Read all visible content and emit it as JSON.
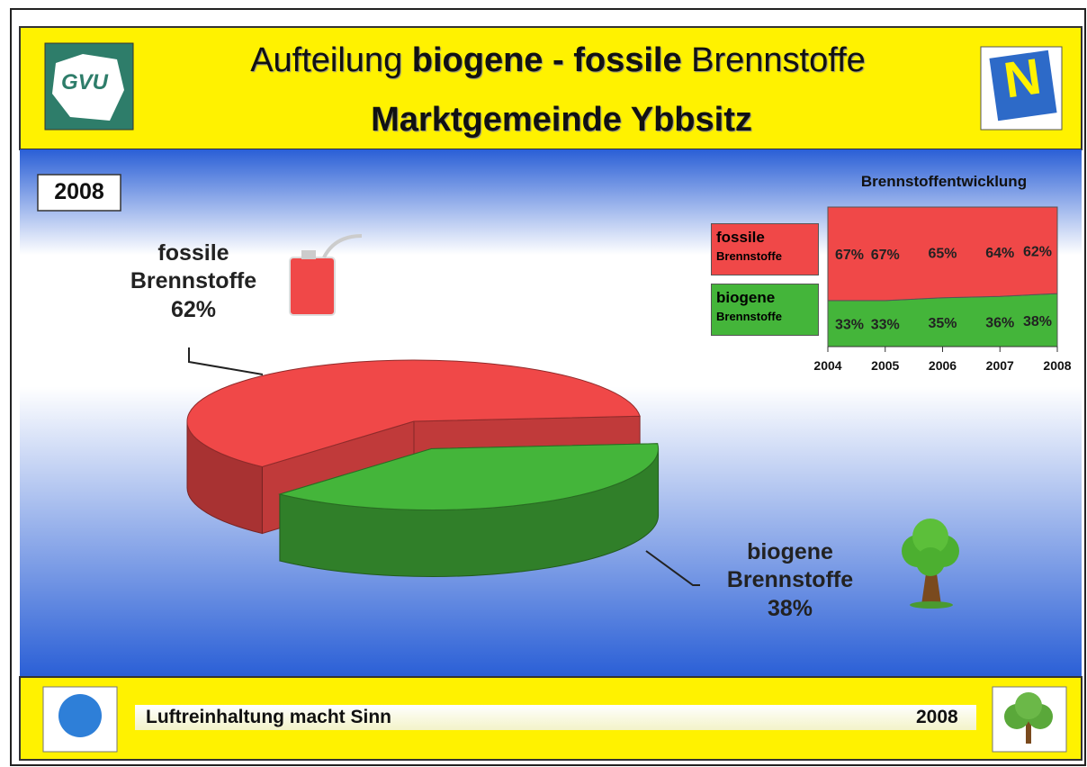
{
  "header": {
    "title_parts": [
      "Aufteilung ",
      "biogene - fossile",
      " Brennstoffe"
    ],
    "subtitle": "Marktgemeinde Ybbsitz",
    "logo_left": "GVU",
    "logo_right": "N"
  },
  "year_badge": "2008",
  "chart_data": [
    {
      "type": "pie3d",
      "categories": [
        "fossile Brennstoffe",
        "biogene Brennstoffe"
      ],
      "values": [
        62,
        38
      ],
      "value_labels": [
        "62%",
        "38%"
      ],
      "colors": [
        "#f04848",
        "#44b53a"
      ]
    },
    {
      "type": "area",
      "title": "Brennstoffentwicklung",
      "stacked": true,
      "x": [
        2004,
        2005,
        2006,
        2007,
        2008
      ],
      "xlim": [
        2004,
        2008
      ],
      "xticks": [
        2004,
        2005,
        2006,
        2007,
        2008
      ],
      "ylim": [
        0,
        100
      ],
      "series": [
        {
          "name": "fossile Brennstoffe",
          "color": "#f04848",
          "values": [
            67,
            67,
            65,
            64,
            62
          ],
          "value_labels": [
            "67%",
            "67%",
            "65%",
            "64%",
            "62%"
          ]
        },
        {
          "name": "biogene Brennstoffe",
          "color": "#44b53a",
          "values": [
            33,
            33,
            35,
            36,
            38
          ],
          "value_labels": [
            "33%",
            "33%",
            "35%",
            "36%",
            "38%"
          ]
        }
      ]
    }
  ],
  "footer": {
    "slogan": "Luftreinhaltung macht Sinn",
    "year": "2008"
  }
}
